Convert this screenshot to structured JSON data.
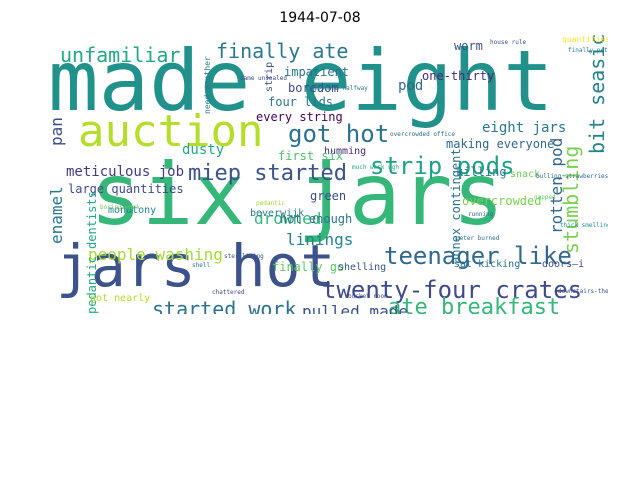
{
  "title": "1944-07-08",
  "words": [
    {
      "text": "made eight",
      "color": "#21918c"
    },
    {
      "text": "six jars",
      "color": "#35b779"
    },
    {
      "text": "jars hot",
      "color": "#3b528b"
    },
    {
      "text": "auction",
      "color": "#b5de2b"
    },
    {
      "text": "twenty-four crates",
      "color": "#3e4a89"
    },
    {
      "text": "teenager like",
      "color": "#31688e"
    },
    {
      "text": "ate breakfast",
      "color": "#35b779"
    },
    {
      "text": "got hot",
      "color": "#2c728e"
    },
    {
      "text": "strip pods",
      "color": "#1fa187"
    },
    {
      "text": "miep started",
      "color": "#3b528b"
    },
    {
      "text": "finally ate",
      "color": "#2a788e"
    },
    {
      "text": "unfamiliar",
      "color": "#22a884"
    },
    {
      "text": "started work",
      "color": "#2c728e"
    },
    {
      "text": "bit seasick",
      "color": "#26828e"
    },
    {
      "text": "stumbling",
      "color": "#7ad151"
    },
    {
      "text": "people washing",
      "color": "#a5db36"
    },
    {
      "text": "pulled made",
      "color": "#3b528b"
    },
    {
      "text": "drowned",
      "color": "#35b779"
    },
    {
      "text": "linings",
      "color": "#25858e"
    },
    {
      "text": "enamel",
      "color": "#2a788e"
    },
    {
      "text": "pan",
      "color": "#3e4a89"
    },
    {
      "text": "rotten pod",
      "color": "#31688e"
    },
    {
      "text": "meticulous job",
      "color": "#443983"
    },
    {
      "text": "eight jars",
      "color": "#2a788e"
    },
    {
      "text": "making everyone",
      "color": "#31688e"
    },
    {
      "text": "dusty",
      "color": "#22a884"
    },
    {
      "text": "every string",
      "color": "#440154"
    },
    {
      "text": "four lids",
      "color": "#2a788e"
    },
    {
      "text": "large quantities",
      "color": "#3e4a89"
    },
    {
      "text": "worm",
      "color": "#3b528b"
    },
    {
      "text": "pod",
      "color": "#31688e"
    },
    {
      "text": "one-thirty",
      "color": "#482878"
    },
    {
      "text": "boredom",
      "color": "#3e4a89"
    },
    {
      "text": "impatient",
      "color": "#2c728e"
    },
    {
      "text": "humming",
      "color": "#482878"
    },
    {
      "text": "first six",
      "color": "#4ac16d"
    },
    {
      "text": "green",
      "color": "#3e4a89"
    },
    {
      "text": "finally go",
      "color": "#5ec962"
    },
    {
      "text": "hot enough",
      "color": "#2c728e"
    },
    {
      "text": "beverwijk",
      "color": "#2a788e"
    },
    {
      "text": "monotony",
      "color": "#26828e"
    },
    {
      "text": "pedantic dentists",
      "color": "#22a884"
    },
    {
      "text": "annex contingent",
      "color": "#2c728e"
    },
    {
      "text": "killing",
      "color": "#2a788e"
    },
    {
      "text": "overcrowded",
      "color": "#7ad151"
    },
    {
      "text": "shelling",
      "color": "#3b528b"
    },
    {
      "text": "sat kicking",
      "color": "#2c728e"
    },
    {
      "text": "doors—i",
      "color": "#3e4a89"
    },
    {
      "text": "snack",
      "color": "#6ece58"
    },
    {
      "text": "got nearly",
      "color": "#b5de2b"
    },
    {
      "text": "quantities",
      "color": "#fde725"
    },
    {
      "text": "strip",
      "color": "#3b528b"
    },
    {
      "text": "need another",
      "color": "#2a788e"
    },
    {
      "text": "running",
      "color": "#31688e"
    },
    {
      "text": "finally peter",
      "color": "#26828e"
    },
    {
      "text": "boring work",
      "color": "#6ece58"
    },
    {
      "text": "bulling strawberries",
      "color": "#31688e"
    },
    {
      "text": "pedantic",
      "color": "#a5db36"
    },
    {
      "text": "came unsealed",
      "color": "#3e4a89"
    },
    {
      "text": "tipsened halfway",
      "color": "#2a788e"
    },
    {
      "text": "much work ugh",
      "color": "#22a884"
    },
    {
      "text": "overcrowded office",
      "color": "#31688e"
    },
    {
      "text": "downstairs-they",
      "color": "#3b528b"
    },
    {
      "text": "shell",
      "color": "#2c728e"
    },
    {
      "text": "chattered",
      "color": "#3e4a89"
    },
    {
      "text": "sterilizing",
      "color": "#3b528b"
    },
    {
      "text": "napped",
      "color": "#5ec962"
    },
    {
      "text": "peter burned",
      "color": "#2c728e"
    },
    {
      "text": "bucket room",
      "color": "#3e4a89"
    },
    {
      "text": "thick smelling",
      "color": "#21918c"
    },
    {
      "text": "house rule",
      "color": "#3b528b"
    }
  ]
}
